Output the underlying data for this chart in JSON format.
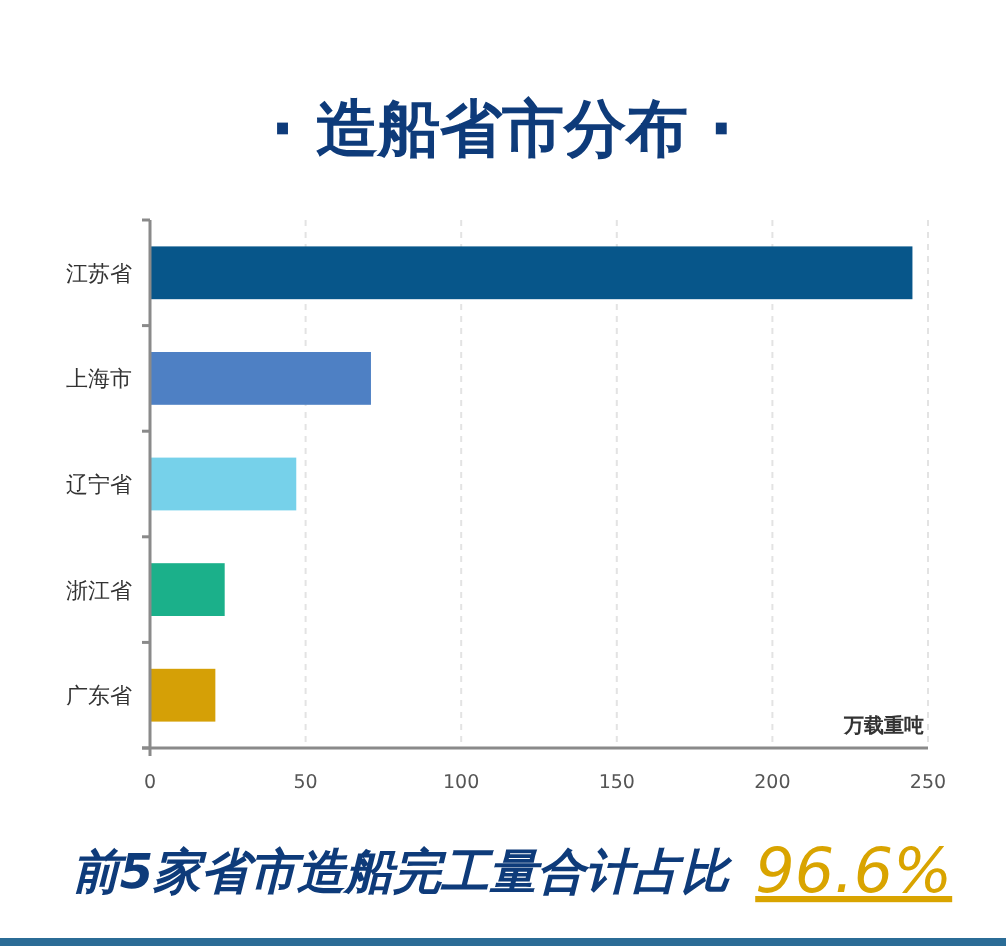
{
  "chart_data": {
    "type": "bar",
    "orientation": "horizontal",
    "title": "· 造船省市分布 ·",
    "xlabel": "万载重吨",
    "categories": [
      "江苏省",
      "上海市",
      "辽宁省",
      "浙江省",
      "广东省"
    ],
    "values": [
      245,
      71,
      47,
      24,
      21
    ],
    "colors": [
      "#07568a",
      "#4e80c4",
      "#76d1ea",
      "#1bb08a",
      "#d5a006"
    ],
    "xlim": [
      0,
      250
    ],
    "xticks": [
      0,
      50,
      100,
      150,
      200,
      250
    ],
    "grid": "x",
    "annotations": [
      "前5家省市造船完工量合计占比",
      "96.6%"
    ]
  }
}
